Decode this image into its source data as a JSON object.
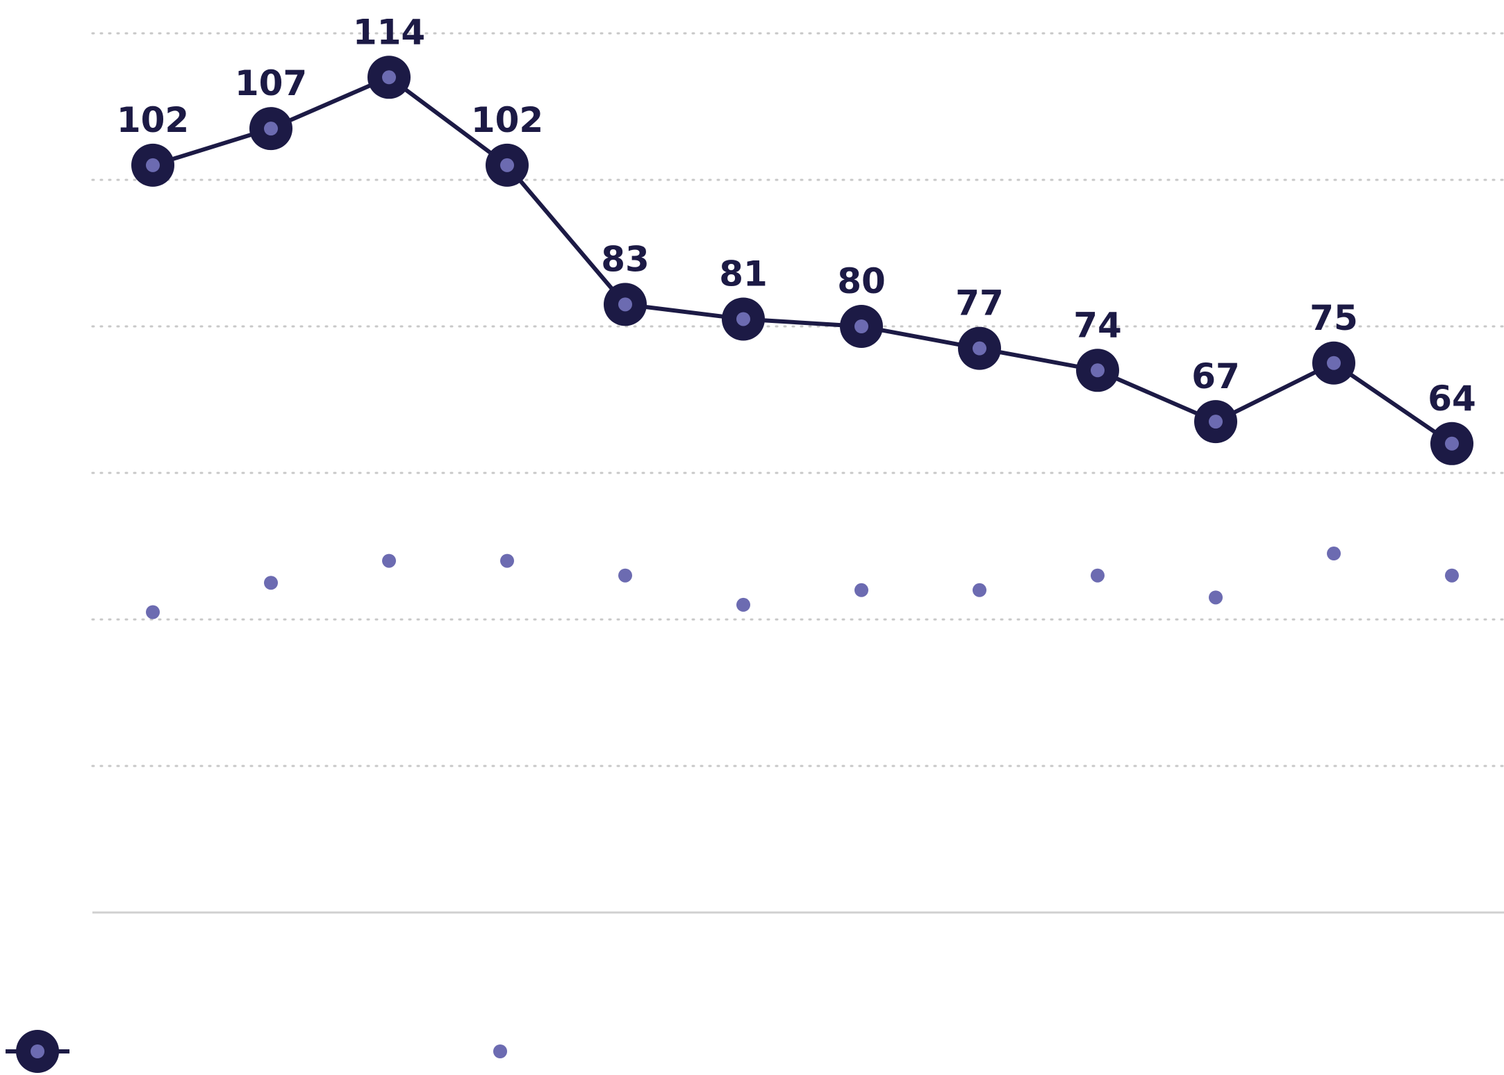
{
  "chart_data": {
    "type": "line",
    "title": "",
    "xlabel": "",
    "ylabel": "",
    "categories": [
      "",
      "",
      "",
      "",
      "",
      "",
      "",
      "",
      "",
      "",
      "",
      ""
    ],
    "ylim": [
      0,
      120
    ],
    "grid": true,
    "legend_position": "bottom-left",
    "series": [
      {
        "name": "",
        "style": "line-with-markers",
        "values": [
          102,
          107,
          114,
          102,
          83,
          81,
          80,
          77,
          74,
          67,
          75,
          64
        ],
        "data_labels": [
          "102",
          "107",
          "114",
          "102",
          "83",
          "81",
          "80",
          "77",
          "74",
          "67",
          "75",
          "64"
        ]
      },
      {
        "name": "",
        "style": "markers-only",
        "values": [
          41,
          45,
          48,
          48,
          46,
          42,
          44,
          44,
          46,
          43,
          49,
          46
        ]
      }
    ]
  },
  "colors": {
    "line": "#1c1a45",
    "marker_center": "#6c6bb1",
    "grid": "#c8c8c8",
    "axis": "#d0d0d0",
    "label": "#1c1a45"
  }
}
